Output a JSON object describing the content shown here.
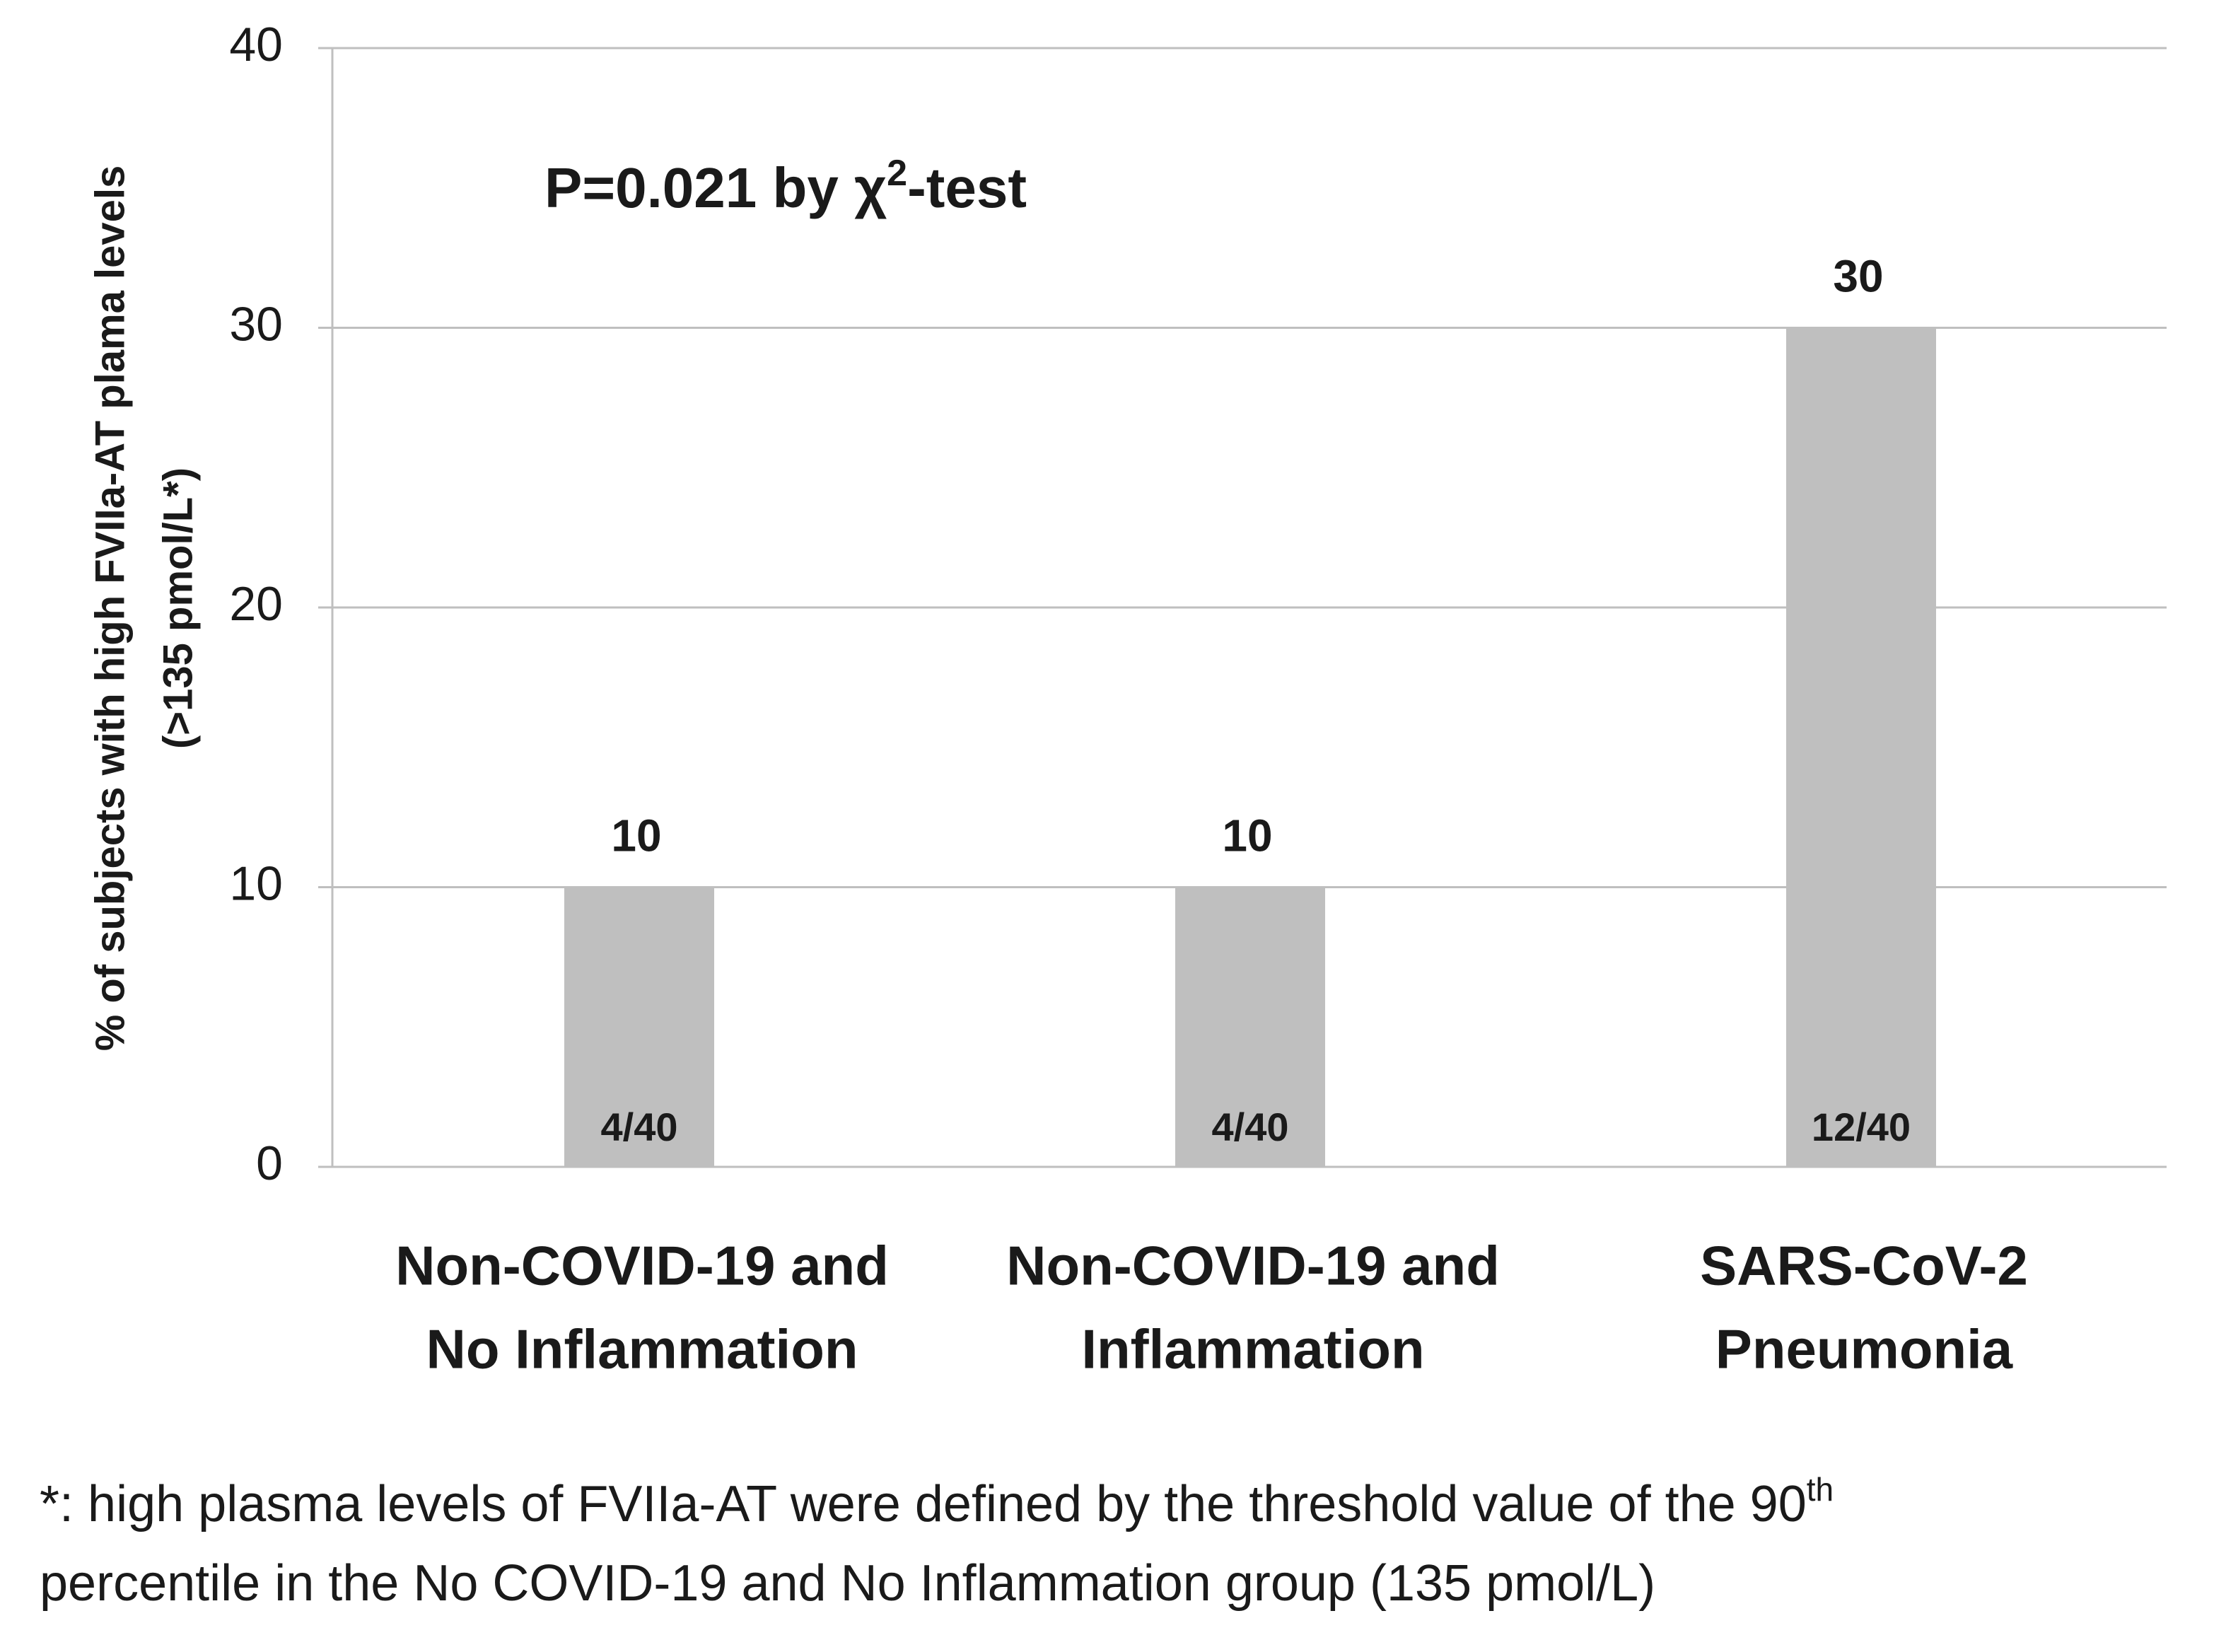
{
  "chart_data": {
    "type": "bar",
    "y_label": [
      "% of subjects with high FVIIa-AT plama levels",
      "(>135 pmol/L*)"
    ],
    "annotation": {
      "text": "P=0.021 by χ",
      "sup": "2",
      "after": "-test"
    },
    "categories": [
      [
        "Non-COVID-19 and",
        "No Inflammation"
      ],
      [
        "Non-COVID-19 and",
        "Inflammation"
      ],
      [
        "SARS-CoV-2",
        "Pneumonia"
      ]
    ],
    "values": [
      10,
      10,
      30
    ],
    "bar_annotations": [
      "4/40",
      "4/40",
      "12/40"
    ],
    "color": "#bfbfbf",
    "ylim": [
      0,
      40
    ],
    "yticks": [
      0,
      10,
      20,
      30,
      40
    ],
    "grid": true,
    "footnote": {
      "line1": "*: high plasma levels of FVIIa-AT were defined by the threshold value of the 90",
      "sup": "th",
      "line2": "percentile in the No COVID-19 and No Inflammation group (135 pmol/L)"
    }
  }
}
